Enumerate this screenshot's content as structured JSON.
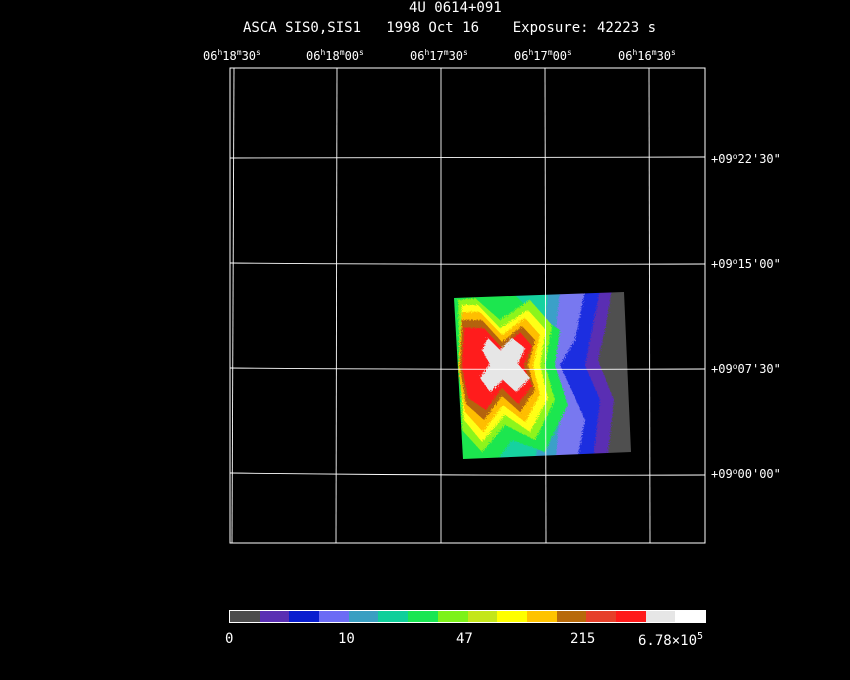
{
  "header": {
    "target": "4U 0614+091",
    "subtitle": "ASCA SIS0,SIS1   1998 Oct 16    Exposure: 42223 s"
  },
  "ra_ticks": [
    {
      "h": "06",
      "m": "18",
      "s": "30"
    },
    {
      "h": "06",
      "m": "18",
      "s": "00"
    },
    {
      "h": "06",
      "m": "17",
      "s": "30"
    },
    {
      "h": "06",
      "m": "17",
      "s": "00"
    },
    {
      "h": "06",
      "m": "16",
      "s": "30"
    }
  ],
  "dec_ticks": [
    {
      "d": "+09",
      "m": "22",
      "s": "30"
    },
    {
      "d": "+09",
      "m": "15",
      "s": "00"
    },
    {
      "d": "+09",
      "m": "07",
      "s": "30"
    },
    {
      "d": "+09",
      "m": "00",
      "s": "00"
    }
  ],
  "colorbar": {
    "colors": [
      "#4d4d4d",
      "#5a2fb3",
      "#0a1ecf",
      "#6c6cf5",
      "#3a9fc2",
      "#0fcf9a",
      "#19e652",
      "#7df219",
      "#c4e61a",
      "#ffff00",
      "#ffc300",
      "#b86a0a",
      "#e6402a",
      "#ff1a1a",
      "#e6e6e6",
      "#ffffff"
    ],
    "labels": [
      "0",
      "10",
      "47",
      "215"
    ],
    "max_label": "6.78×10",
    "max_exp": "5"
  },
  "image_colors": {
    "gray": "#505050",
    "violet": "#5a2fb3",
    "blue": "#1f2fe0",
    "lightblue": "#7878f0",
    "teal": "#3aa0c8",
    "cyan": "#14d2a0",
    "green": "#1ee650",
    "lime": "#8cf51e",
    "yellow": "#ffff14",
    "orange": "#ffbe00",
    "brown": "#b4640a",
    "red": "#ff1e1e",
    "white": "#e6e6e6"
  }
}
